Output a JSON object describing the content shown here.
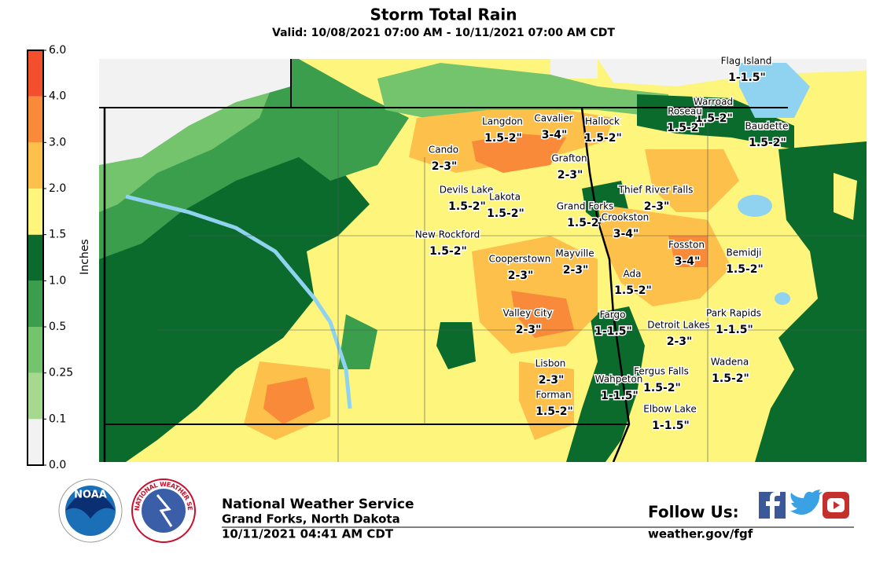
{
  "header": {
    "title": "Storm Total Rain",
    "subtitle": "Valid: 10/08/2021 07:00 AM - 10/11/2021 07:00 AM CDT"
  },
  "legend": {
    "label": "Inches",
    "ticks": [
      {
        "value": 0,
        "label": "0.0"
      },
      {
        "value": 0.1,
        "label": "0.1"
      },
      {
        "value": 0.25,
        "label": "0.25"
      },
      {
        "value": 0.5,
        "label": "0.5"
      },
      {
        "value": 1,
        "label": "1.0"
      },
      {
        "value": 1.5,
        "label": "1.5"
      },
      {
        "value": 2,
        "label": "2.0"
      },
      {
        "value": 3,
        "label": "3.0"
      },
      {
        "value": 4,
        "label": "4.0"
      },
      {
        "value": 6,
        "label": "6.0"
      }
    ],
    "colors": [
      "#f2f2f2",
      "#a6d98f",
      "#74c46e",
      "#3a9e4d",
      "#0b6b2c",
      "#fdf57c",
      "#fdc04a",
      "#f88a3a",
      "#f2502c"
    ]
  },
  "cities": [
    {
      "name": "Flag Island",
      "range": "1-1.5\""
    },
    {
      "name": "Warroad",
      "range": "1.5-2\""
    },
    {
      "name": "Roseau",
      "range": "1.5-2\""
    },
    {
      "name": "Baudette",
      "range": "1.5-2\""
    },
    {
      "name": "Langdon",
      "range": "1.5-2\""
    },
    {
      "name": "Cavalier",
      "range": "3-4\""
    },
    {
      "name": "Hallock",
      "range": "1.5-2\""
    },
    {
      "name": "Cando",
      "range": "2-3\""
    },
    {
      "name": "Grafton",
      "range": "2-3\""
    },
    {
      "name": "Devils Lake",
      "range": "1.5-2\""
    },
    {
      "name": "Lakota",
      "range": "1.5-2\""
    },
    {
      "name": "Thief River Falls",
      "range": "2-3\""
    },
    {
      "name": "Grand Forks",
      "range": "1.5-2\""
    },
    {
      "name": "Crookston",
      "range": "3-4\""
    },
    {
      "name": "New Rockford",
      "range": "1.5-2\""
    },
    {
      "name": "Fosston",
      "range": "3-4\""
    },
    {
      "name": "Cooperstown",
      "range": "2-3\""
    },
    {
      "name": "Mayville",
      "range": "2-3\""
    },
    {
      "name": "Bemidji",
      "range": "1.5-2\""
    },
    {
      "name": "Ada",
      "range": "1.5-2\""
    },
    {
      "name": "Valley City",
      "range": "2-3\""
    },
    {
      "name": "Fargo",
      "range": "1-1.5\""
    },
    {
      "name": "Park Rapids",
      "range": "1-1.5\""
    },
    {
      "name": "Detroit Lakes",
      "range": "2-3\""
    },
    {
      "name": "Lisbon",
      "range": "2-3\""
    },
    {
      "name": "Wadena",
      "range": "1.5-2\""
    },
    {
      "name": "Fergus Falls",
      "range": "1.5-2\""
    },
    {
      "name": "Wahpeton",
      "range": "1-1.5\""
    },
    {
      "name": "Forman",
      "range": "1.5-2\""
    },
    {
      "name": "Elbow Lake",
      "range": "1-1.5\""
    }
  ],
  "footer": {
    "office": "National Weather Service",
    "location": "Grand Forks, North Dakota",
    "issued": "10/11/2021 04:41 AM CDT",
    "follow": "Follow Us:",
    "url": "weather.gov/fgf",
    "noaa": "NOAA",
    "nws": "NATIONAL WEATHER SERVICE"
  }
}
